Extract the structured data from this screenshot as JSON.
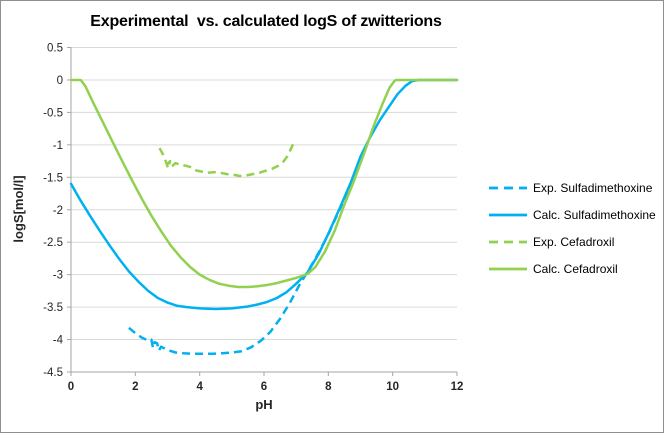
{
  "chart_data": {
    "type": "line",
    "title": "Experimental  vs. calculated logS of zwitterions",
    "xlabel": "pH",
    "ylabel": "logS[mol/l]",
    "xlim": [
      0,
      12
    ],
    "ylim": [
      -4.5,
      0.5
    ],
    "grid": "horizontal",
    "legend_position": "right",
    "colors": {
      "blue": "#00B0F0",
      "green": "#92D050",
      "gridline": "#D9D9D9",
      "axis": "#A6A6A6",
      "tick_text": "#262626"
    },
    "x_ticks": [
      {
        "v": 0,
        "label": "0"
      },
      {
        "v": 2,
        "label": "2"
      },
      {
        "v": 4,
        "label": "4"
      },
      {
        "v": 6,
        "label": "6"
      },
      {
        "v": 8,
        "label": "8"
      },
      {
        "v": 10,
        "label": "10"
      },
      {
        "v": 12,
        "label": "12"
      }
    ],
    "y_ticks": [
      {
        "v": 0.5,
        "label": "0.5"
      },
      {
        "v": 0,
        "label": "0"
      },
      {
        "v": -0.5,
        "label": "-0.5"
      },
      {
        "v": -1,
        "label": "-1"
      },
      {
        "v": -1.5,
        "label": "-1.5"
      },
      {
        "v": -2,
        "label": "-2"
      },
      {
        "v": -2.5,
        "label": "-2.5"
      },
      {
        "v": -3,
        "label": "-3"
      },
      {
        "v": -3.5,
        "label": "-3.5"
      },
      {
        "v": -4,
        "label": "-4"
      },
      {
        "v": -4.5,
        "label": "-4.5"
      }
    ],
    "series": [
      {
        "name": "Exp. Sulfadimethoxine",
        "color": "#00B0F0",
        "style": "dashed",
        "points": [
          [
            1.8,
            -3.82
          ],
          [
            2.0,
            -3.9
          ],
          [
            2.2,
            -3.97
          ],
          [
            2.38,
            -4.01
          ],
          [
            2.5,
            -4.0
          ],
          [
            2.55,
            -4.13
          ],
          [
            2.6,
            -4.04
          ],
          [
            2.68,
            -4.06
          ],
          [
            2.73,
            -4.17
          ],
          [
            2.8,
            -4.11
          ],
          [
            3.0,
            -4.16
          ],
          [
            3.25,
            -4.2
          ],
          [
            3.5,
            -4.21
          ],
          [
            3.8,
            -4.22
          ],
          [
            4.1,
            -4.22
          ],
          [
            4.4,
            -4.22
          ],
          [
            4.7,
            -4.21
          ],
          [
            5.0,
            -4.2
          ],
          [
            5.3,
            -4.18
          ],
          [
            5.6,
            -4.12
          ],
          [
            5.9,
            -4.02
          ],
          [
            6.2,
            -3.88
          ],
          [
            6.5,
            -3.68
          ],
          [
            6.8,
            -3.44
          ],
          [
            7.1,
            -3.16
          ],
          [
            7.4,
            -2.92
          ],
          [
            7.7,
            -2.66
          ],
          [
            8.0,
            -2.38
          ],
          [
            8.3,
            -2.05
          ],
          [
            8.55,
            -1.78
          ],
          [
            8.75,
            -1.52
          ],
          [
            8.87,
            -1.4
          ]
        ]
      },
      {
        "name": "Calc. Sulfadimethoxine",
        "color": "#00B0F0",
        "style": "solid",
        "points": [
          [
            0,
            -1.6
          ],
          [
            0.3,
            -1.86
          ],
          [
            0.6,
            -2.1
          ],
          [
            0.9,
            -2.33
          ],
          [
            1.2,
            -2.55
          ],
          [
            1.5,
            -2.76
          ],
          [
            1.8,
            -2.95
          ],
          [
            2.1,
            -3.11
          ],
          [
            2.4,
            -3.25
          ],
          [
            2.7,
            -3.36
          ],
          [
            3.0,
            -3.43
          ],
          [
            3.3,
            -3.48
          ],
          [
            3.6,
            -3.5
          ],
          [
            4.0,
            -3.52
          ],
          [
            4.5,
            -3.53
          ],
          [
            5.0,
            -3.52
          ],
          [
            5.5,
            -3.49
          ],
          [
            5.8,
            -3.46
          ],
          [
            6.1,
            -3.42
          ],
          [
            6.4,
            -3.36
          ],
          [
            6.7,
            -3.27
          ],
          [
            7.0,
            -3.14
          ],
          [
            7.35,
            -2.97
          ],
          [
            7.7,
            -2.68
          ],
          [
            8.0,
            -2.37
          ],
          [
            8.35,
            -1.98
          ],
          [
            8.7,
            -1.58
          ],
          [
            9.0,
            -1.18
          ],
          [
            9.3,
            -0.88
          ],
          [
            9.6,
            -0.62
          ],
          [
            9.9,
            -0.4
          ],
          [
            10.15,
            -0.22
          ],
          [
            10.4,
            -0.09
          ],
          [
            10.6,
            -0.02
          ],
          [
            10.8,
            0
          ],
          [
            12,
            0
          ]
        ]
      },
      {
        "name": "Exp. Cefadroxil",
        "color": "#92D050",
        "style": "dashed",
        "points": [
          [
            2.75,
            -1.05
          ],
          [
            2.85,
            -1.14
          ],
          [
            2.95,
            -1.26
          ],
          [
            3.02,
            -1.36
          ],
          [
            3.08,
            -1.25
          ],
          [
            3.0,
            -1.3
          ],
          [
            3.12,
            -1.34
          ],
          [
            3.25,
            -1.28
          ],
          [
            3.4,
            -1.31
          ],
          [
            3.55,
            -1.32
          ],
          [
            3.7,
            -1.34
          ],
          [
            3.85,
            -1.39
          ],
          [
            4.05,
            -1.41
          ],
          [
            4.25,
            -1.43
          ],
          [
            4.45,
            -1.42
          ],
          [
            4.65,
            -1.43
          ],
          [
            4.85,
            -1.45
          ],
          [
            5.05,
            -1.46
          ],
          [
            5.25,
            -1.48
          ],
          [
            5.45,
            -1.47
          ],
          [
            5.65,
            -1.45
          ],
          [
            5.85,
            -1.43
          ],
          [
            6.05,
            -1.4
          ],
          [
            6.25,
            -1.37
          ],
          [
            6.45,
            -1.32
          ],
          [
            6.6,
            -1.26
          ],
          [
            6.72,
            -1.18
          ],
          [
            6.82,
            -1.08
          ],
          [
            6.9,
            -0.99
          ]
        ]
      },
      {
        "name": "Calc. Cefadroxil",
        "color": "#92D050",
        "style": "solid",
        "points": [
          [
            0,
            0
          ],
          [
            0.3,
            0
          ],
          [
            0.45,
            -0.1
          ],
          [
            0.7,
            -0.36
          ],
          [
            1.0,
            -0.66
          ],
          [
            1.3,
            -0.96
          ],
          [
            1.6,
            -1.26
          ],
          [
            1.9,
            -1.55
          ],
          [
            2.2,
            -1.83
          ],
          [
            2.5,
            -2.09
          ],
          [
            2.8,
            -2.33
          ],
          [
            3.1,
            -2.55
          ],
          [
            3.4,
            -2.73
          ],
          [
            3.7,
            -2.88
          ],
          [
            4.0,
            -3.0
          ],
          [
            4.3,
            -3.08
          ],
          [
            4.6,
            -3.14
          ],
          [
            4.9,
            -3.17
          ],
          [
            5.2,
            -3.19
          ],
          [
            5.5,
            -3.19
          ],
          [
            5.8,
            -3.18
          ],
          [
            6.1,
            -3.16
          ],
          [
            6.4,
            -3.13
          ],
          [
            6.7,
            -3.09
          ],
          [
            7.0,
            -3.05
          ],
          [
            7.35,
            -2.99
          ],
          [
            7.6,
            -2.88
          ],
          [
            7.9,
            -2.64
          ],
          [
            8.2,
            -2.32
          ],
          [
            8.5,
            -1.92
          ],
          [
            8.8,
            -1.55
          ],
          [
            9.1,
            -1.15
          ],
          [
            9.4,
            -0.72
          ],
          [
            9.7,
            -0.35
          ],
          [
            9.9,
            -0.12
          ],
          [
            10.05,
            -0.02
          ],
          [
            10.1,
            0
          ],
          [
            12,
            0
          ]
        ]
      }
    ]
  }
}
